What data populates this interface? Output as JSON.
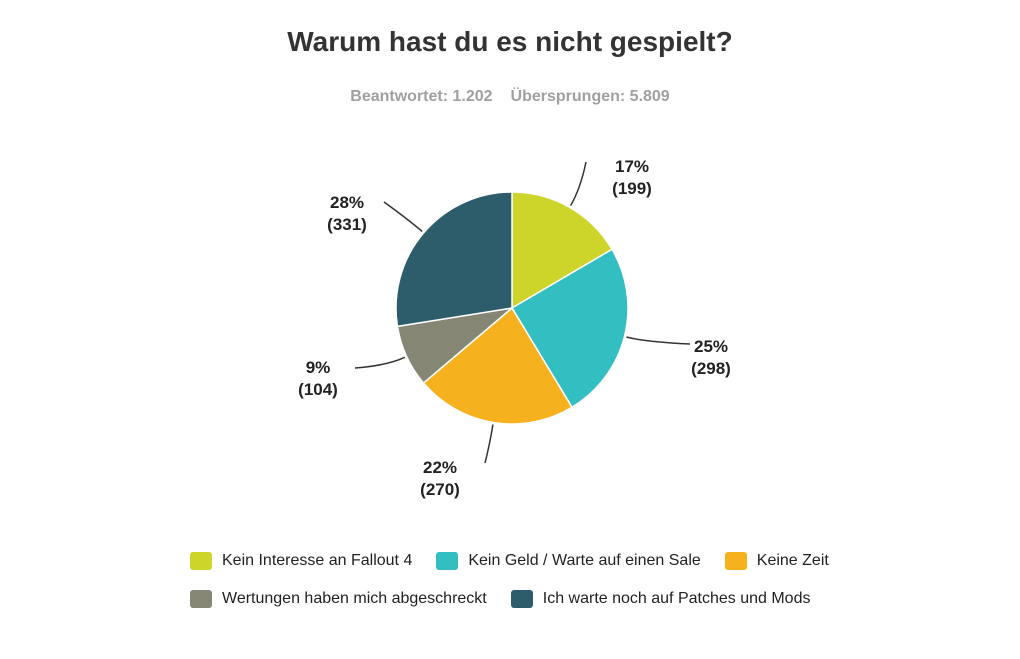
{
  "chart_data": {
    "type": "pie",
    "title": "Warum hast du es nicht gespielt?",
    "subtitle": {
      "answered": "Beantwortet: 1.202",
      "skipped": "Übersprungen: 5.809"
    },
    "slices": [
      {
        "name": "Kein Interesse an Fallout 4",
        "value": 199,
        "percent_label": "17%",
        "count_label": "(199)",
        "color": "#cdd42a"
      },
      {
        "name": "Kein Geld / Warte auf einen Sale",
        "value": 298,
        "percent_label": "25%",
        "count_label": "(298)",
        "color": "#33bfc1"
      },
      {
        "name": "Keine Zeit",
        "value": 270,
        "percent_label": "22%",
        "count_label": "(270)",
        "color": "#f6b11f"
      },
      {
        "name": "Wertungen haben mich abgeschreckt",
        "value": 104,
        "percent_label": "9%",
        "count_label": "(104)",
        "color": "#868675"
      },
      {
        "name": "Ich warte noch auf Patches und Mods",
        "value": 331,
        "percent_label": "28%",
        "count_label": "(331)",
        "color": "#2d5d6b"
      }
    ],
    "legend_placement": "bottom"
  }
}
